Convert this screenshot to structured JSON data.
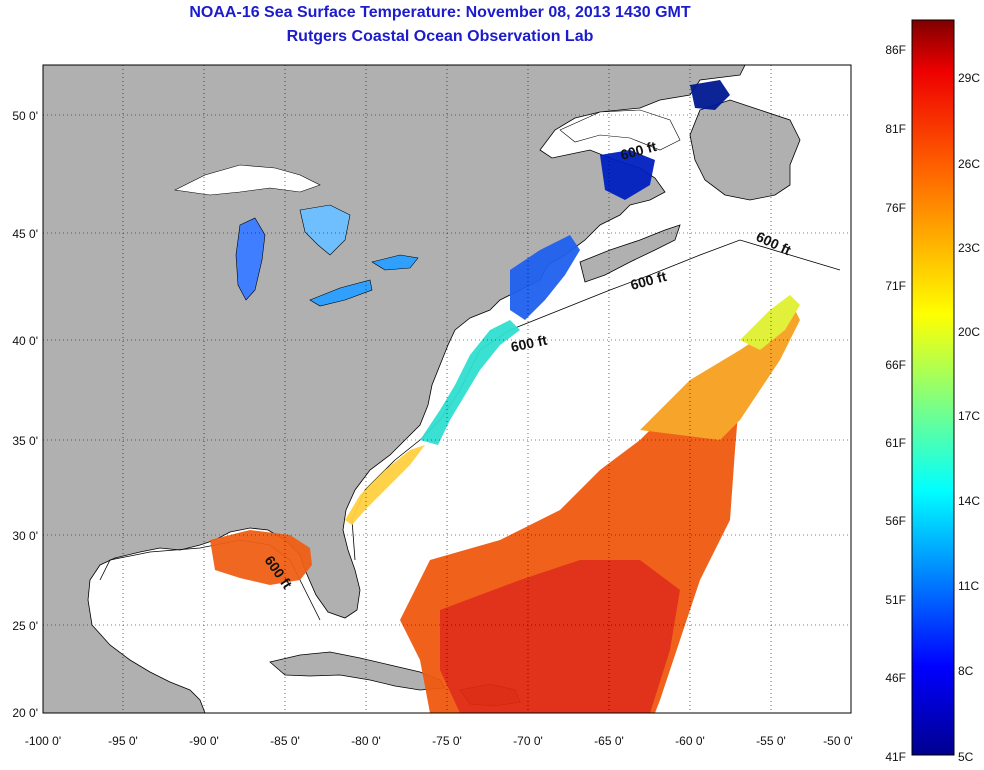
{
  "title": {
    "line1": "NOAA-16 Sea Surface Temperature:  November 08, 2013 1430 GMT",
    "line2": "Rutgers Coastal Ocean Observation Lab"
  },
  "map": {
    "lat_ticks": [
      "50 0'",
      "45 0'",
      "40 0'",
      "35 0'",
      "30 0'",
      "25 0'",
      "20 0'"
    ],
    "lon_ticks": [
      "-100 0'",
      "-95 0'",
      "-90 0'",
      "-85 0'",
      "-80 0'",
      "-75 0'",
      "-70 0'",
      "-65 0'",
      "-60 0'",
      "-55 0'",
      "-50 0'"
    ],
    "contour_label": "600 ft",
    "land_color": "#b0b0b0",
    "water_color": "#ffffff"
  },
  "colorbar": {
    "fahrenheit_ticks": [
      "86F",
      "81F",
      "76F",
      "71F",
      "66F",
      "61F",
      "56F",
      "51F",
      "46F",
      "41F"
    ],
    "celsius_ticks": [
      "29C",
      "26C",
      "23C",
      "20C",
      "17C",
      "14C",
      "11C",
      "8C",
      "5C"
    ],
    "colors": [
      "#7f0000",
      "#ff0000",
      "#ff8000",
      "#ffff00",
      "#80ff80",
      "#00ffff",
      "#0080ff",
      "#0000ff",
      "#00008f"
    ]
  }
}
